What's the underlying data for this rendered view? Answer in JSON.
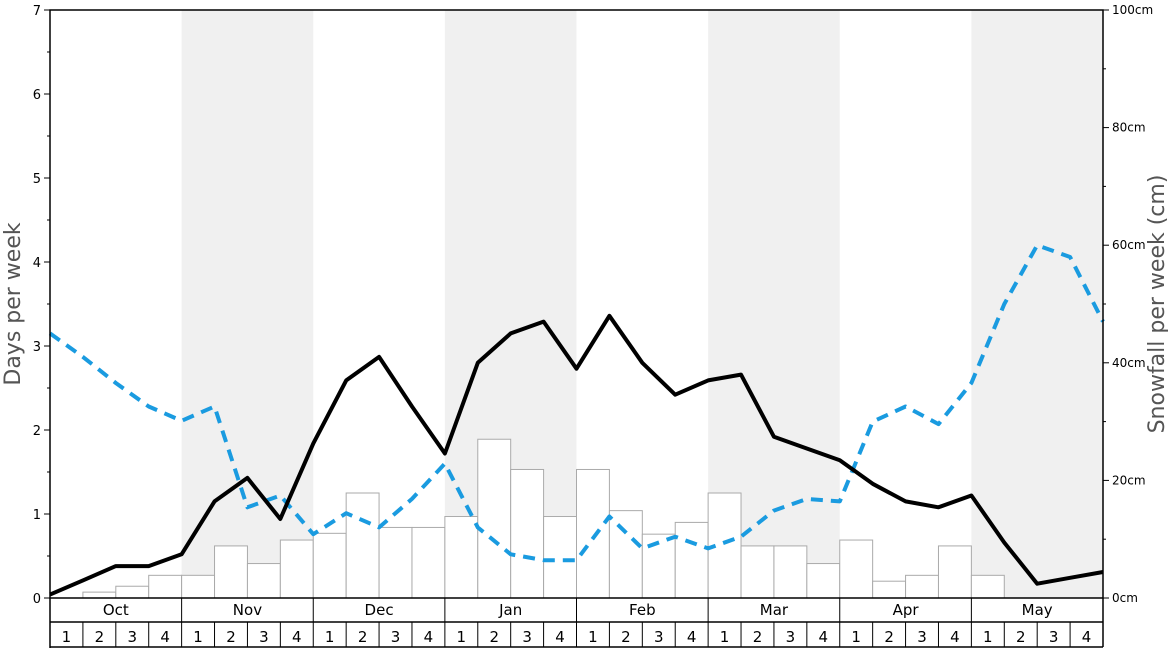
{
  "chart_data": {
    "type": "bar+line",
    "ylabel_left": "Days per week",
    "ylabel_right": "Snowfall per week (cm)",
    "ylim_left": [
      0,
      7
    ],
    "left_ticks": [
      "0",
      "1",
      "2",
      "3",
      "4",
      "5",
      "6",
      "7"
    ],
    "ylim_right": [
      0,
      100
    ],
    "right_ticks": [
      "0cm",
      "20cm",
      "40cm",
      "60cm",
      "80cm",
      "100cm"
    ],
    "months": [
      "Oct",
      "Nov",
      "Dec",
      "Jan",
      "Feb",
      "Mar",
      "Apr",
      "May"
    ],
    "weeks": [
      "1",
      "2",
      "3",
      "4"
    ],
    "shaded_months": [
      "Nov",
      "Jan",
      "Mar",
      "May"
    ],
    "colors": {
      "shade": "#f0f0f0",
      "bar_fill": "#ffffff",
      "bar_stroke": "#aaaaaa",
      "solid_line": "#000000",
      "dashed_line": "#1a9be0",
      "axis_title": "#555555"
    },
    "snowfall_bars": [
      0,
      0.07,
      0.14,
      0.27,
      0.27,
      0.62,
      0.41,
      0.69,
      0.77,
      1.25,
      0.84,
      0.84,
      0.97,
      1.89,
      1.53,
      0.97,
      1.53,
      1.04,
      0.76,
      0.9,
      1.25,
      0.62,
      0.62,
      0.41,
      0.69,
      0.2,
      0.27,
      0.62,
      0.27,
      0,
      0,
      0
    ],
    "solid_series": [
      0.04,
      0.21,
      0.38,
      0.38,
      0.52,
      1.15,
      1.43,
      0.94,
      1.84,
      2.59,
      2.87,
      2.28,
      1.72,
      2.8,
      3.15,
      3.29,
      2.73,
      3.36,
      2.8,
      2.42,
      2.59,
      2.66,
      1.92,
      1.78,
      1.64,
      1.36,
      1.15,
      1.08,
      1.22,
      0.66,
      0.17,
      0.24,
      0.31
    ],
    "dashed_series": [
      3.15,
      2.87,
      2.56,
      2.28,
      2.11,
      2.28,
      1.08,
      1.22,
      0.76,
      1.01,
      0.84,
      1.18,
      1.6,
      0.84,
      0.52,
      0.45,
      0.45,
      0.97,
      0.59,
      0.73,
      0.59,
      0.73,
      1.04,
      1.18,
      1.15,
      2.1,
      2.28,
      2.07,
      2.56,
      3.5,
      4.2,
      4.06,
      3.29
    ]
  }
}
